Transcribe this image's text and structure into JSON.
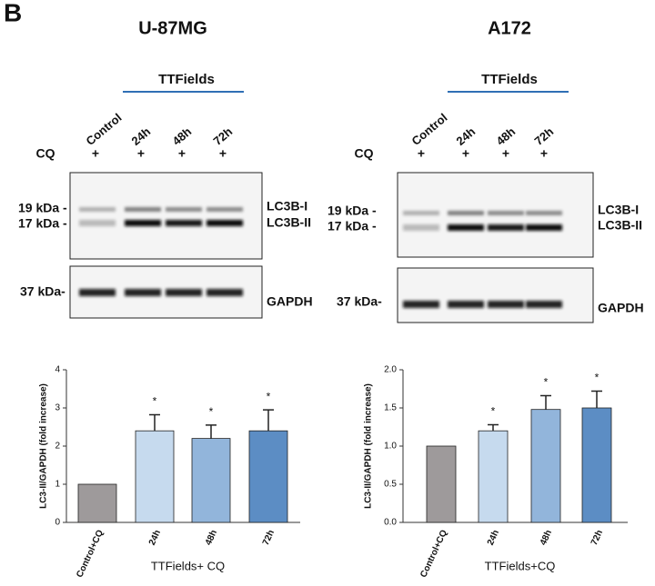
{
  "panel_label": "B",
  "panels": [
    {
      "title": "U-87MG",
      "treatment": "TTFields",
      "lanes": [
        "Control",
        "24h",
        "48h",
        "72h"
      ],
      "cq_label": "CQ",
      "cq": [
        "+",
        "+",
        "+",
        "+"
      ],
      "markers": [
        "19 kDa -",
        "17 kDa -",
        "37 kDa-"
      ],
      "bands": [
        "LC3B-I",
        "LC3B-II",
        "GAPDH"
      ]
    },
    {
      "title": "A172",
      "treatment": "TTFields",
      "lanes": [
        "Control",
        "24h",
        "48h",
        "72h"
      ],
      "cq_label": "CQ",
      "cq": [
        "+",
        "+",
        "+",
        "+"
      ],
      "markers": [
        "19 kDa -",
        "17 kDa -",
        "37 kDa-"
      ],
      "bands": [
        "LC3B-I",
        "LC3B-II",
        "GAPDH"
      ]
    }
  ],
  "chart_data": [
    {
      "type": "bar",
      "x_label": "TTFields+ CQ",
      "y_label": "LC3-II/GAPDH (fold increase)",
      "categories": [
        "Control+CQ",
        "24h",
        "48h",
        "72h"
      ],
      "values": [
        1,
        2.4,
        2.2,
        2.4
      ],
      "errors": [
        null,
        0.42,
        0.35,
        0.55
      ],
      "significance": [
        null,
        "*",
        "*",
        "*"
      ],
      "colors": [
        "#9e9a9b",
        "#c6daee",
        "#92b5db",
        "#5c8dc4"
      ],
      "ylim": [
        0,
        4
      ],
      "yticks": [
        0,
        1,
        2,
        3,
        4
      ]
    },
    {
      "type": "bar",
      "x_label": "TTFields+CQ",
      "y_label": "LC3-II/GAPDH (fold increase)",
      "categories": [
        "Control+CQ",
        "24h",
        "48h",
        "72h"
      ],
      "values": [
        1.0,
        1.2,
        1.48,
        1.5
      ],
      "errors": [
        null,
        0.08,
        0.18,
        0.22
      ],
      "significance": [
        null,
        "*",
        "*",
        "*"
      ],
      "colors": [
        "#9e9a9b",
        "#c6daee",
        "#92b5db",
        "#5c8dc4"
      ],
      "ylim": [
        0,
        2
      ],
      "yticks": [
        {
          "value": 0,
          "label": "0.0"
        },
        {
          "value": 0.5,
          "label": "0.5"
        },
        {
          "value": 1,
          "label": "1.0"
        },
        {
          "value": 1.5,
          "label": "1.5"
        },
        {
          "value": 2,
          "label": "2.0"
        }
      ]
    }
  ]
}
